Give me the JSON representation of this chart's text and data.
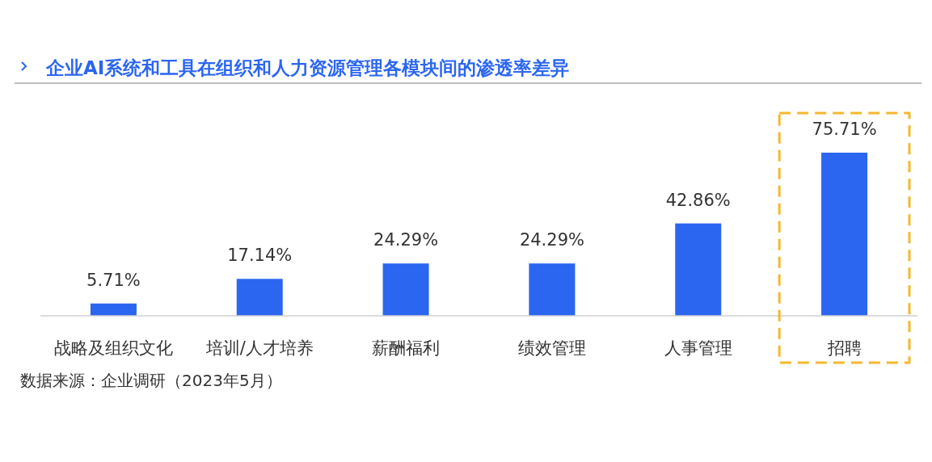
{
  "chart_data": {
    "type": "bar",
    "title": "企业AI系统和工具在组织和人力资源管理各模块间的渗透率差异",
    "categories": [
      "战略及组织文化",
      "培训/人才培养",
      "薪酬福利",
      "绩效管理",
      "人事管理",
      "招聘"
    ],
    "values": [
      5.71,
      17.14,
      24.29,
      24.29,
      42.86,
      75.71
    ],
    "value_labels": [
      "5.71%",
      "17.14%",
      "24.29%",
      "24.29%",
      "42.86%",
      "75.71%"
    ],
    "color": "#2b66f0",
    "annotations": [
      "数据来源：企业调研（2023年5月）"
    ]
  }
}
